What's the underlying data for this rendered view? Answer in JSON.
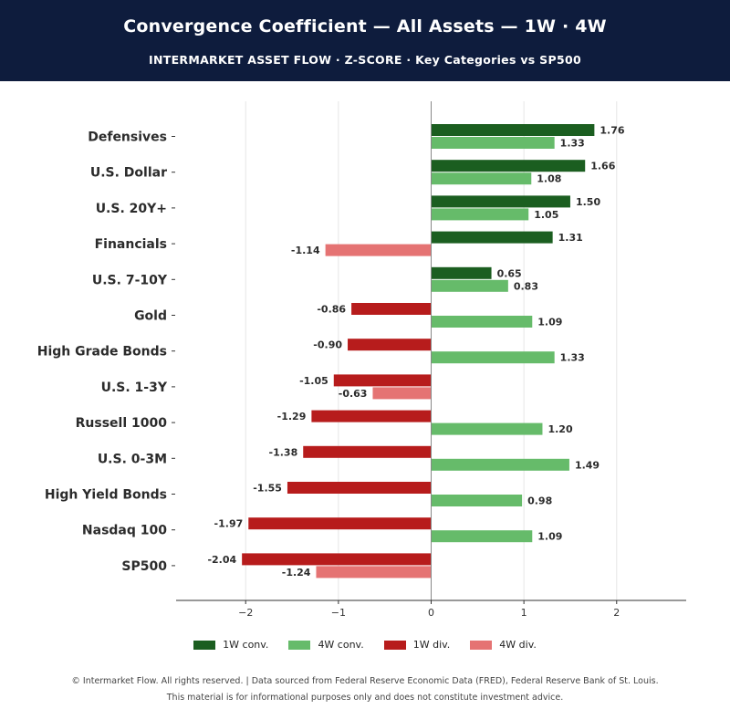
{
  "header": {
    "title": "Convergence Coefficient — All Assets — 1W · 4W",
    "subtitle": "INTERMARKET ASSET FLOW  ·  Z-SCORE  ·  Key Categories vs SP500"
  },
  "colors": {
    "header_bg": "#0e1c3d",
    "conv_1w": "#1b5e20",
    "conv_4w": "#66bb6a",
    "div_1w": "#b71c1c",
    "div_4w": "#e57373"
  },
  "chart_data": {
    "type": "bar",
    "orientation": "horizontal",
    "categories": [
      "Defensives",
      "U.S. Dollar",
      "U.S. 20Y+",
      "Financials",
      "U.S. 7-10Y",
      "Gold",
      "High Grade Bonds",
      "U.S.  1-3Y",
      "Russell 1000",
      "U.S. 0-3M",
      "High Yield Bonds",
      "Nasdaq 100",
      "SP500"
    ],
    "series": [
      {
        "name": "1W",
        "values": [
          1.76,
          1.66,
          1.5,
          1.31,
          0.65,
          -0.86,
          -0.9,
          -1.05,
          -1.29,
          -1.38,
          -1.55,
          -1.97,
          -2.04
        ]
      },
      {
        "name": "4W",
        "values": [
          1.33,
          1.08,
          1.05,
          -1.14,
          0.83,
          1.09,
          1.33,
          -0.63,
          1.2,
          1.49,
          0.98,
          1.09,
          -1.24
        ]
      }
    ],
    "value_labels_1w": [
      "1.76",
      "1.66",
      "1.50",
      "1.31",
      "0.65",
      "-0.86",
      "-0.90",
      "-1.05",
      "-1.29",
      "-1.38",
      "-1.55",
      "-1.97",
      "-2.04"
    ],
    "value_labels_4w": [
      "1.33",
      "1.08",
      "1.05",
      "-1.14",
      "0.83",
      "1.09",
      "1.33",
      "-0.63",
      "1.20",
      "1.49",
      "0.98",
      "1.09",
      "-1.24"
    ],
    "xlim": [
      -2.75,
      2.75
    ],
    "xticks": [
      -2,
      -1,
      0,
      1,
      2
    ],
    "xtick_labels": [
      "−2",
      "−1",
      "0",
      "1",
      "2"
    ],
    "grid": "vertical",
    "legend_position": "bottom-center"
  },
  "legend": {
    "items": [
      {
        "label": "1W conv.",
        "color": "#1b5e20"
      },
      {
        "label": "4W conv.",
        "color": "#66bb6a"
      },
      {
        "label": "1W div.",
        "color": "#b71c1c"
      },
      {
        "label": "4W div.",
        "color": "#e57373"
      }
    ]
  },
  "footer": {
    "line1": "© Intermarket Flow. All rights reserved.  |  Data sourced from Federal Reserve Economic Data (FRED), Federal Reserve Bank of St. Louis.",
    "line2": "This material is for informational purposes only and does not constitute investment advice."
  }
}
